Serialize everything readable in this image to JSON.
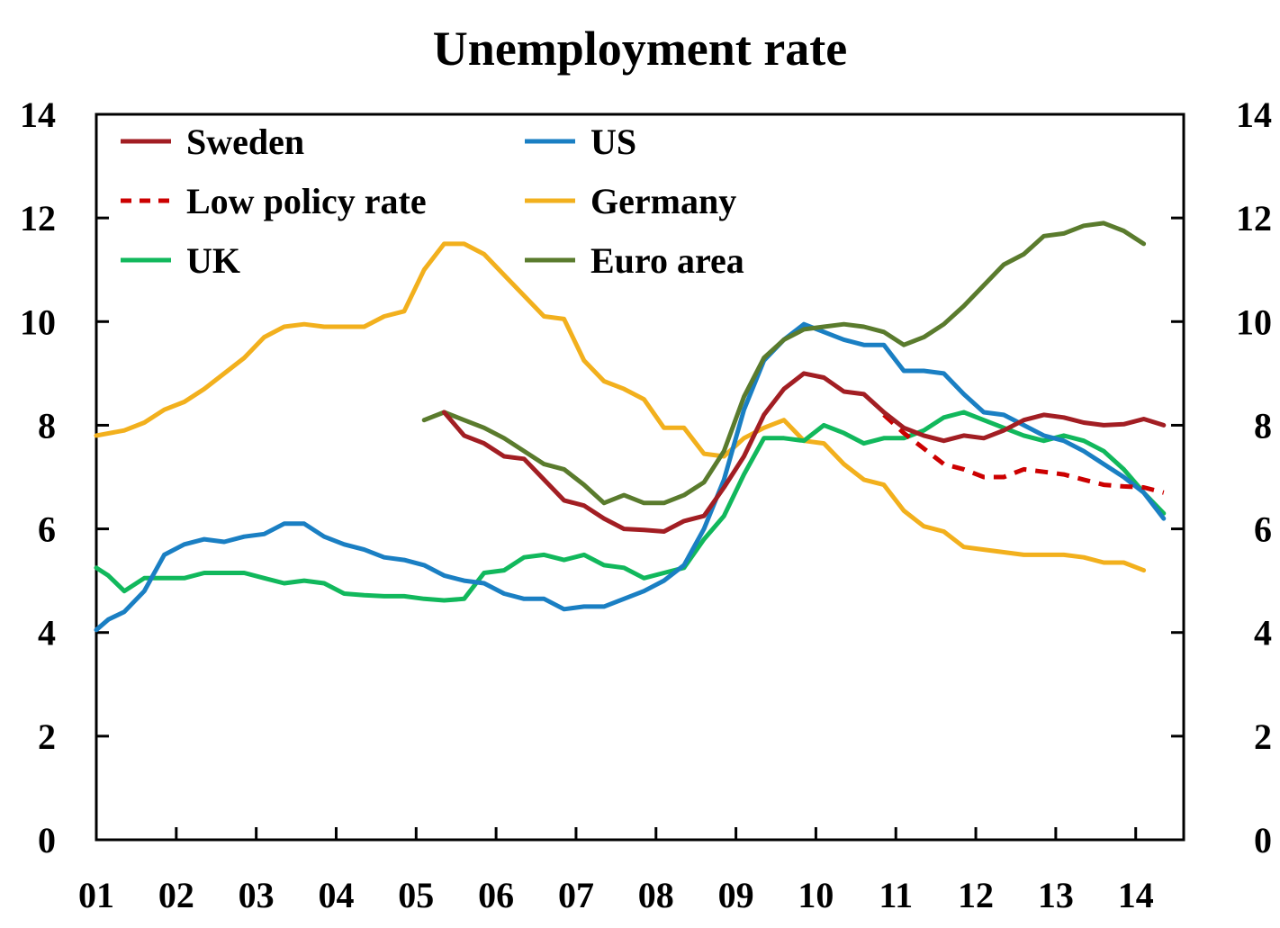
{
  "chart_data": {
    "type": "line",
    "title": "Unemployment rate",
    "xlabel": "",
    "ylabel": "",
    "ylim": [
      0,
      14
    ],
    "yticks": [
      0,
      2,
      4,
      6,
      8,
      10,
      12,
      14
    ],
    "xlim": [
      2001.0,
      2014.6
    ],
    "xtick_labels": [
      "01",
      "02",
      "03",
      "04",
      "05",
      "06",
      "07",
      "08",
      "09",
      "10",
      "11",
      "12",
      "13",
      "14"
    ],
    "legend_position": "top-left",
    "grid": false,
    "secondary_y_axis": true,
    "series": [
      {
        "name": "Sweden",
        "color": "#a21e23",
        "dash": "solid",
        "points": [
          [
            2005.35,
            8.25
          ],
          [
            2005.6,
            7.8
          ],
          [
            2005.85,
            7.65
          ],
          [
            2006.1,
            7.4
          ],
          [
            2006.35,
            7.35
          ],
          [
            2006.6,
            6.95
          ],
          [
            2006.85,
            6.55
          ],
          [
            2007.1,
            6.45
          ],
          [
            2007.35,
            6.2
          ],
          [
            2007.6,
            6.0
          ],
          [
            2007.85,
            5.98
          ],
          [
            2008.1,
            5.95
          ],
          [
            2008.35,
            6.15
          ],
          [
            2008.6,
            6.25
          ],
          [
            2008.85,
            6.8
          ],
          [
            2009.1,
            7.4
          ],
          [
            2009.35,
            8.2
          ],
          [
            2009.6,
            8.7
          ],
          [
            2009.85,
            9.0
          ],
          [
            2010.1,
            8.92
          ],
          [
            2010.35,
            8.65
          ],
          [
            2010.6,
            8.6
          ],
          [
            2010.85,
            8.25
          ],
          [
            2011.1,
            7.95
          ],
          [
            2011.35,
            7.8
          ],
          [
            2011.6,
            7.7
          ],
          [
            2011.85,
            7.8
          ],
          [
            2012.1,
            7.75
          ],
          [
            2012.35,
            7.9
          ],
          [
            2012.6,
            8.1
          ],
          [
            2012.85,
            8.2
          ],
          [
            2013.1,
            8.15
          ],
          [
            2013.35,
            8.05
          ],
          [
            2013.6,
            8.0
          ],
          [
            2013.85,
            8.02
          ],
          [
            2014.1,
            8.12
          ],
          [
            2014.35,
            8.0
          ]
        ]
      },
      {
        "name": "Low policy rate",
        "color": "#cc0000",
        "dash": "dashed",
        "points": [
          [
            2010.85,
            8.2
          ],
          [
            2011.1,
            7.85
          ],
          [
            2011.35,
            7.55
          ],
          [
            2011.6,
            7.25
          ],
          [
            2011.85,
            7.15
          ],
          [
            2012.1,
            7.0
          ],
          [
            2012.35,
            7.0
          ],
          [
            2012.6,
            7.15
          ],
          [
            2012.85,
            7.1
          ],
          [
            2013.1,
            7.05
          ],
          [
            2013.35,
            6.95
          ],
          [
            2013.6,
            6.85
          ],
          [
            2013.85,
            6.82
          ],
          [
            2014.1,
            6.8
          ],
          [
            2014.35,
            6.7
          ]
        ]
      },
      {
        "name": "UK",
        "color": "#11b85c",
        "dash": "solid",
        "points": [
          [
            2001.0,
            5.25
          ],
          [
            2001.15,
            5.1
          ],
          [
            2001.35,
            4.8
          ],
          [
            2001.6,
            5.05
          ],
          [
            2001.85,
            5.05
          ],
          [
            2002.1,
            5.05
          ],
          [
            2002.35,
            5.15
          ],
          [
            2002.6,
            5.15
          ],
          [
            2002.85,
            5.15
          ],
          [
            2003.1,
            5.05
          ],
          [
            2003.35,
            4.95
          ],
          [
            2003.6,
            5.0
          ],
          [
            2003.85,
            4.95
          ],
          [
            2004.1,
            4.75
          ],
          [
            2004.35,
            4.72
          ],
          [
            2004.6,
            4.7
          ],
          [
            2004.85,
            4.7
          ],
          [
            2005.1,
            4.65
          ],
          [
            2005.35,
            4.62
          ],
          [
            2005.6,
            4.65
          ],
          [
            2005.85,
            5.15
          ],
          [
            2006.1,
            5.2
          ],
          [
            2006.35,
            5.45
          ],
          [
            2006.6,
            5.5
          ],
          [
            2006.85,
            5.4
          ],
          [
            2007.1,
            5.5
          ],
          [
            2007.35,
            5.3
          ],
          [
            2007.6,
            5.25
          ],
          [
            2007.85,
            5.05
          ],
          [
            2008.1,
            5.15
          ],
          [
            2008.35,
            5.25
          ],
          [
            2008.6,
            5.8
          ],
          [
            2008.85,
            6.25
          ],
          [
            2009.1,
            7.05
          ],
          [
            2009.35,
            7.75
          ],
          [
            2009.6,
            7.75
          ],
          [
            2009.85,
            7.7
          ],
          [
            2010.1,
            8.0
          ],
          [
            2010.35,
            7.85
          ],
          [
            2010.6,
            7.65
          ],
          [
            2010.85,
            7.75
          ],
          [
            2011.1,
            7.75
          ],
          [
            2011.35,
            7.9
          ],
          [
            2011.6,
            8.15
          ],
          [
            2011.85,
            8.25
          ],
          [
            2012.1,
            8.1
          ],
          [
            2012.35,
            7.95
          ],
          [
            2012.6,
            7.8
          ],
          [
            2012.85,
            7.7
          ],
          [
            2013.1,
            7.8
          ],
          [
            2013.35,
            7.7
          ],
          [
            2013.6,
            7.5
          ],
          [
            2013.85,
            7.15
          ],
          [
            2014.1,
            6.7
          ],
          [
            2014.35,
            6.3
          ]
        ]
      },
      {
        "name": "US",
        "color": "#1a7fc3",
        "dash": "solid",
        "points": [
          [
            2001.0,
            4.05
          ],
          [
            2001.15,
            4.25
          ],
          [
            2001.35,
            4.4
          ],
          [
            2001.6,
            4.8
          ],
          [
            2001.85,
            5.5
          ],
          [
            2002.1,
            5.7
          ],
          [
            2002.35,
            5.8
          ],
          [
            2002.6,
            5.75
          ],
          [
            2002.85,
            5.85
          ],
          [
            2003.1,
            5.9
          ],
          [
            2003.35,
            6.1
          ],
          [
            2003.6,
            6.1
          ],
          [
            2003.85,
            5.85
          ],
          [
            2004.1,
            5.7
          ],
          [
            2004.35,
            5.6
          ],
          [
            2004.6,
            5.45
          ],
          [
            2004.85,
            5.4
          ],
          [
            2005.1,
            5.3
          ],
          [
            2005.35,
            5.1
          ],
          [
            2005.6,
            5.0
          ],
          [
            2005.85,
            4.95
          ],
          [
            2006.1,
            4.75
          ],
          [
            2006.35,
            4.65
          ],
          [
            2006.6,
            4.65
          ],
          [
            2006.85,
            4.45
          ],
          [
            2007.1,
            4.5
          ],
          [
            2007.35,
            4.5
          ],
          [
            2007.6,
            4.65
          ],
          [
            2007.85,
            4.8
          ],
          [
            2008.1,
            5.0
          ],
          [
            2008.35,
            5.3
          ],
          [
            2008.6,
            6.0
          ],
          [
            2008.85,
            6.95
          ],
          [
            2009.1,
            8.3
          ],
          [
            2009.35,
            9.25
          ],
          [
            2009.6,
            9.65
          ],
          [
            2009.85,
            9.95
          ],
          [
            2010.1,
            9.8
          ],
          [
            2010.35,
            9.65
          ],
          [
            2010.6,
            9.55
          ],
          [
            2010.85,
            9.55
          ],
          [
            2011.1,
            9.05
          ],
          [
            2011.35,
            9.05
          ],
          [
            2011.6,
            9.0
          ],
          [
            2011.85,
            8.6
          ],
          [
            2012.1,
            8.25
          ],
          [
            2012.35,
            8.2
          ],
          [
            2012.6,
            8.0
          ],
          [
            2012.85,
            7.8
          ],
          [
            2013.1,
            7.7
          ],
          [
            2013.35,
            7.5
          ],
          [
            2013.6,
            7.25
          ],
          [
            2013.85,
            7.0
          ],
          [
            2014.1,
            6.7
          ],
          [
            2014.35,
            6.2
          ]
        ]
      },
      {
        "name": "Germany",
        "color": "#f2b01d",
        "dash": "solid",
        "points": [
          [
            2001.0,
            7.8
          ],
          [
            2001.35,
            7.9
          ],
          [
            2001.6,
            8.05
          ],
          [
            2001.85,
            8.3
          ],
          [
            2002.1,
            8.45
          ],
          [
            2002.35,
            8.7
          ],
          [
            2002.6,
            9.0
          ],
          [
            2002.85,
            9.3
          ],
          [
            2003.1,
            9.7
          ],
          [
            2003.35,
            9.9
          ],
          [
            2003.6,
            9.95
          ],
          [
            2003.85,
            9.9
          ],
          [
            2004.1,
            9.9
          ],
          [
            2004.35,
            9.9
          ],
          [
            2004.6,
            10.1
          ],
          [
            2004.85,
            10.2
          ],
          [
            2005.1,
            11.0
          ],
          [
            2005.35,
            11.5
          ],
          [
            2005.6,
            11.5
          ],
          [
            2005.85,
            11.3
          ],
          [
            2006.1,
            10.9
          ],
          [
            2006.35,
            10.5
          ],
          [
            2006.6,
            10.1
          ],
          [
            2006.85,
            10.05
          ],
          [
            2007.1,
            9.25
          ],
          [
            2007.35,
            8.85
          ],
          [
            2007.6,
            8.7
          ],
          [
            2007.85,
            8.5
          ],
          [
            2008.1,
            7.95
          ],
          [
            2008.35,
            7.95
          ],
          [
            2008.6,
            7.45
          ],
          [
            2008.85,
            7.4
          ],
          [
            2009.1,
            7.75
          ],
          [
            2009.35,
            7.95
          ],
          [
            2009.6,
            8.1
          ],
          [
            2009.85,
            7.7
          ],
          [
            2010.1,
            7.65
          ],
          [
            2010.35,
            7.25
          ],
          [
            2010.6,
            6.95
          ],
          [
            2010.85,
            6.85
          ],
          [
            2011.1,
            6.35
          ],
          [
            2011.35,
            6.05
          ],
          [
            2011.6,
            5.95
          ],
          [
            2011.85,
            5.65
          ],
          [
            2012.1,
            5.6
          ],
          [
            2012.35,
            5.55
          ],
          [
            2012.6,
            5.5
          ],
          [
            2012.85,
            5.5
          ],
          [
            2013.1,
            5.5
          ],
          [
            2013.35,
            5.45
          ],
          [
            2013.6,
            5.35
          ],
          [
            2013.85,
            5.35
          ],
          [
            2014.1,
            5.2
          ]
        ]
      },
      {
        "name": "Euro area",
        "color": "#5a7b2d",
        "dash": "solid",
        "points": [
          [
            2005.1,
            8.1
          ],
          [
            2005.35,
            8.25
          ],
          [
            2005.6,
            8.1
          ],
          [
            2005.85,
            7.95
          ],
          [
            2006.1,
            7.75
          ],
          [
            2006.35,
            7.5
          ],
          [
            2006.6,
            7.25
          ],
          [
            2006.85,
            7.15
          ],
          [
            2007.1,
            6.85
          ],
          [
            2007.35,
            6.5
          ],
          [
            2007.6,
            6.65
          ],
          [
            2007.85,
            6.5
          ],
          [
            2008.1,
            6.5
          ],
          [
            2008.35,
            6.65
          ],
          [
            2008.6,
            6.9
          ],
          [
            2008.85,
            7.5
          ],
          [
            2009.1,
            8.55
          ],
          [
            2009.35,
            9.3
          ],
          [
            2009.6,
            9.65
          ],
          [
            2009.85,
            9.85
          ],
          [
            2010.1,
            9.9
          ],
          [
            2010.35,
            9.95
          ],
          [
            2010.6,
            9.9
          ],
          [
            2010.85,
            9.8
          ],
          [
            2011.1,
            9.55
          ],
          [
            2011.35,
            9.7
          ],
          [
            2011.6,
            9.95
          ],
          [
            2011.85,
            10.3
          ],
          [
            2012.1,
            10.7
          ],
          [
            2012.35,
            11.1
          ],
          [
            2012.6,
            11.3
          ],
          [
            2012.85,
            11.65
          ],
          [
            2013.1,
            11.7
          ],
          [
            2013.35,
            11.85
          ],
          [
            2013.6,
            11.9
          ],
          [
            2013.85,
            11.75
          ],
          [
            2014.1,
            11.5
          ]
        ]
      }
    ]
  }
}
